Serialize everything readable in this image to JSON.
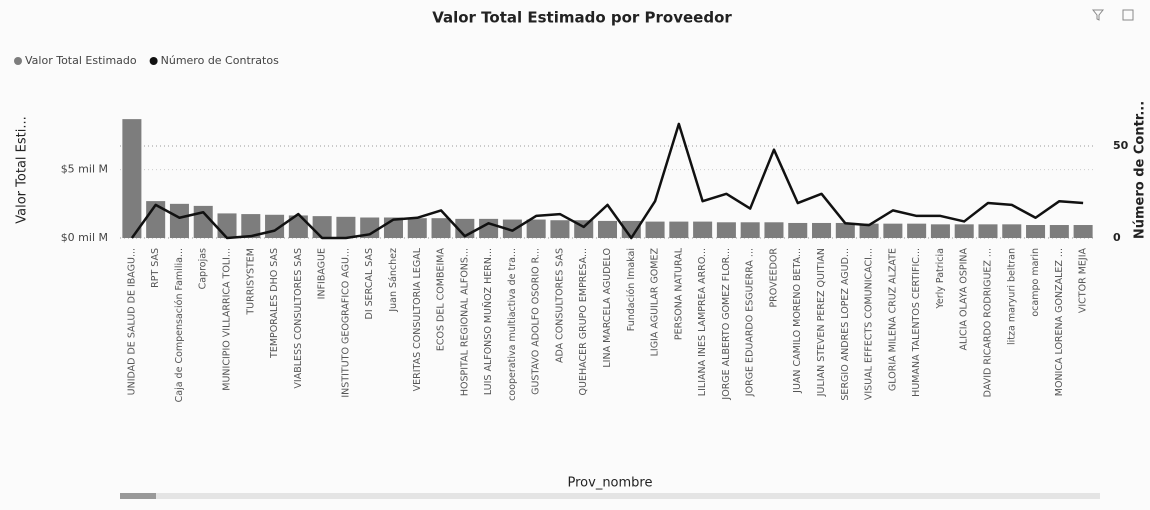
{
  "chart_data": {
    "type": "bar_line",
    "title": "Valor Total Estimado por Proveedor",
    "xlabel": "Prov_nombre",
    "ylabel": "Valor Total Esti...",
    "y2label": "Número de Contr...",
    "categories": [
      "UNIDAD DE SALUD DE IBAGU...",
      "RPT SAS",
      "Caja de Compensación Familia...",
      "Caprojas",
      "MUNICIPIO VILLARRICA TOLI...",
      "TURRISYSTEM",
      "TEMPORALES DHO SAS",
      "VIABLESS CONSULTORES SAS",
      "INFIBAGUE",
      "INSTITUTO GEOGRAFICO AGU...",
      "DI SERCAL SAS",
      "Juan Sánchez",
      "VERITAS CONSULTORIA LEGAL",
      "ECOS DEL COMBEIMA",
      "HOSPITAL REGIONAL ALFONS...",
      "LUIS ALFONSO MUÑOZ HERN...",
      "cooperativa multiactiva de tra...",
      "GUSTAVO ADOLFO OSORIO R...",
      "ADA CONSULTORES SAS",
      "QUEHACER GRUPO EMPRESA...",
      "LINA MARCELA AGUDELO",
      "Fundación Imakai",
      "LIGIA AGUILAR GOMEZ",
      "PERSONA NATURAL",
      "LILIANA INES LAMPREA ARRO...",
      "JORGE ALBERTO GOMEZ FLOR...",
      "JORGE EDUARDO ESGUERRA ...",
      "PROVEEDOR",
      "JUAN CAMILO MORENO BETA...",
      "JULIAN STEVEN PEREZ QUITIAN",
      "SERGIO ANDRES LOPEZ AGUD...",
      "VISUAL EFFECTS COMUNICACI...",
      "GLORIA MILENA CRUZ ALZATE",
      "HUMANA TALENTOS CERTIFIC...",
      "Yerly Patricia",
      "ALICIA OLAYA OSPINA",
      "DAVID RICARDO RODRIGUEZ ...",
      "litza maryuri beltran",
      "ocampo marin",
      "MONICA LORENA GONZALEZ ...",
      "VICTOR MEJIA"
    ],
    "series": [
      {
        "name": "Valor Total Estimado",
        "color": "#7d7d7d",
        "type": "bar",
        "values": [
          8700000000,
          2700000000,
          2500000000,
          2350000000,
          1800000000,
          1750000000,
          1700000000,
          1650000000,
          1600000000,
          1550000000,
          1500000000,
          1500000000,
          1450000000,
          1450000000,
          1400000000,
          1400000000,
          1350000000,
          1350000000,
          1300000000,
          1300000000,
          1250000000,
          1250000000,
          1200000000,
          1200000000,
          1200000000,
          1150000000,
          1150000000,
          1150000000,
          1100000000,
          1100000000,
          1100000000,
          1050000000,
          1050000000,
          1050000000,
          1000000000,
          1000000000,
          1000000000,
          1000000000,
          950000000,
          950000000,
          950000000
        ]
      },
      {
        "name": "Número de Contratos",
        "color": "#111111",
        "type": "line",
        "axis": "y2",
        "values": [
          0,
          18,
          11,
          14,
          0,
          1,
          4,
          13,
          0,
          0,
          2,
          10,
          11,
          15,
          1,
          8,
          4,
          12,
          13,
          6,
          18,
          0,
          20,
          62,
          20,
          24,
          16,
          48,
          19,
          24,
          8,
          7,
          15,
          12,
          12,
          9,
          19,
          18,
          11,
          20,
          19
        ]
      }
    ],
    "ylim": [
      0,
      10100000000
    ],
    "yticks": [
      {
        "value": 0,
        "label": "$0 mil M"
      },
      {
        "value": 5000000000,
        "label": "$5 mil M"
      }
    ],
    "y2lim": [
      0,
      75
    ],
    "y2ticks": [
      0,
      50
    ],
    "grid": true
  }
}
